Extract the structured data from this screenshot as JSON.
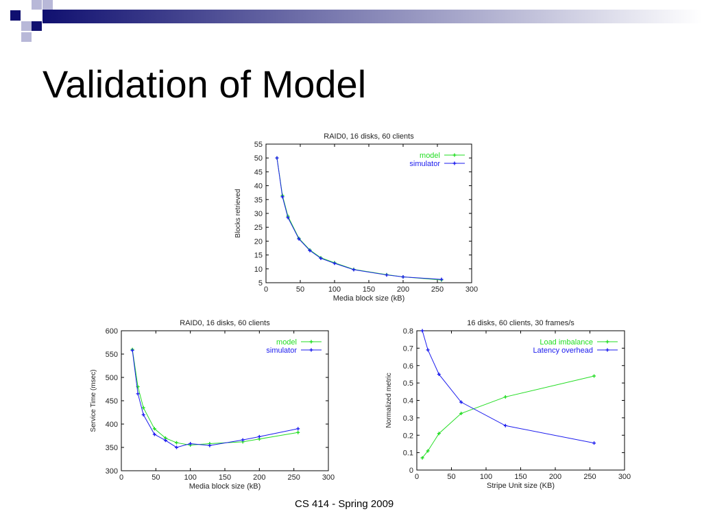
{
  "slide": {
    "title": "Validation of Model",
    "footer": "CS 414 - Spring 2009"
  },
  "colors": {
    "model": "#22dd22",
    "simulator": "#1a1aee",
    "header_dark": "#101070",
    "header_light": "#b8b8d8"
  },
  "chart_data": [
    {
      "type": "line",
      "title": "RAID0, 16 disks, 60 clients",
      "xlabel": "Media block size (kB)",
      "ylabel": "Blocks retrieved",
      "xlim": [
        0,
        300
      ],
      "ylim": [
        5,
        55
      ],
      "xticks": [
        "0",
        "50",
        "100",
        "150",
        "200",
        "250",
        "300"
      ],
      "yticks": [
        "5",
        "10",
        "15",
        "20",
        "25",
        "30",
        "35",
        "40",
        "45",
        "50",
        "55"
      ],
      "legend": "top-right",
      "series": [
        {
          "name": "model",
          "color": "#22dd22",
          "x": [
            16,
            24,
            32,
            48,
            64,
            80,
            100,
            128,
            176,
            200,
            256
          ],
          "y": [
            50,
            36.5,
            29,
            21,
            16.8,
            14,
            12.2,
            9.8,
            7.9,
            7.1,
            6
          ]
        },
        {
          "name": "simulator",
          "color": "#1a1aee",
          "x": [
            16,
            24,
            32,
            48,
            64,
            80,
            100,
            128,
            176,
            200,
            256
          ],
          "y": [
            50,
            36,
            28.5,
            20.8,
            16.6,
            13.8,
            12,
            9.7,
            7.8,
            7.1,
            6.2
          ]
        }
      ]
    },
    {
      "type": "line",
      "title": "RAID0, 16 disks, 60 clients",
      "xlabel": "Media block size (kB)",
      "ylabel": "Service Time (msec)",
      "xlim": [
        0,
        300
      ],
      "ylim": [
        300,
        600
      ],
      "xticks": [
        "0",
        "50",
        "100",
        "150",
        "200",
        "250",
        "300"
      ],
      "yticks": [
        "300",
        "350",
        "400",
        "450",
        "500",
        "550",
        "600"
      ],
      "legend": "top-right",
      "series": [
        {
          "name": "model",
          "color": "#22dd22",
          "x": [
            16,
            24,
            32,
            48,
            64,
            80,
            100,
            128,
            176,
            200,
            256
          ],
          "y": [
            560,
            480,
            435,
            390,
            370,
            360,
            355,
            358,
            362,
            368,
            382
          ]
        },
        {
          "name": "simulator",
          "color": "#1a1aee",
          "x": [
            16,
            24,
            32,
            48,
            64,
            80,
            100,
            128,
            176,
            200,
            256
          ],
          "y": [
            558,
            465,
            420,
            378,
            365,
            350,
            358,
            354,
            366,
            373,
            390
          ]
        }
      ]
    },
    {
      "type": "line",
      "title": "16 disks, 60 clients, 30 frames/s",
      "xlabel": "Stripe Unit size (KB)",
      "ylabel": "Normalized metric",
      "xlim": [
        0,
        300
      ],
      "ylim": [
        0,
        0.8
      ],
      "xticks": [
        "0",
        "50",
        "100",
        "150",
        "200",
        "250",
        "300"
      ],
      "yticks": [
        "0",
        "0.1",
        "0.2",
        "0.3",
        "0.4",
        "0.5",
        "0.6",
        "0.7",
        "0.8"
      ],
      "legend": "top-right",
      "series": [
        {
          "name": "Load imbalance",
          "color": "#22dd22",
          "x": [
            8,
            16,
            32,
            64,
            128,
            256
          ],
          "y": [
            0.07,
            0.11,
            0.21,
            0.325,
            0.42,
            0.54
          ]
        },
        {
          "name": "Latency overhead",
          "color": "#1a1aee",
          "x": [
            8,
            16,
            32,
            64,
            128,
            256
          ],
          "y": [
            0.8,
            0.69,
            0.55,
            0.39,
            0.255,
            0.155
          ]
        }
      ]
    }
  ]
}
